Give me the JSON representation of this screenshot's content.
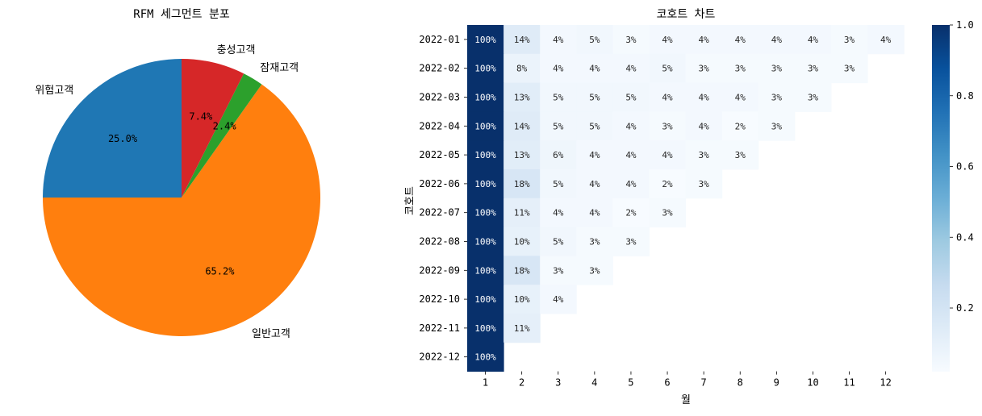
{
  "chart_data": [
    {
      "type": "pie",
      "title": "RFM 세그먼트 분포",
      "labels": [
        "위험고객",
        "일반고객",
        "잠재고객",
        "충성고객"
      ],
      "values": [
        25.0,
        65.2,
        2.4,
        7.4
      ],
      "pct_labels": [
        "25.0%",
        "65.2%",
        "2.4%",
        "7.4%"
      ],
      "colors": [
        "#1f77b4",
        "#ff7f0e",
        "#2ca02c",
        "#d62728"
      ],
      "start_angle_deg": 90,
      "direction": "counterclockwise"
    },
    {
      "type": "heatmap",
      "title": "코호트 차트",
      "xlabel": "월",
      "ylabel": "코호트",
      "x_ticks": [
        "1",
        "2",
        "3",
        "4",
        "5",
        "6",
        "7",
        "8",
        "9",
        "10",
        "11",
        "12"
      ],
      "y_ticks": [
        "2022-01",
        "2022-02",
        "2022-03",
        "2022-04",
        "2022-05",
        "2022-06",
        "2022-07",
        "2022-08",
        "2022-09",
        "2022-10",
        "2022-11",
        "2022-12"
      ],
      "values": [
        [
          100,
          14,
          4,
          5,
          3,
          4,
          4,
          4,
          4,
          4,
          3,
          4
        ],
        [
          100,
          8,
          4,
          4,
          4,
          5,
          3,
          3,
          3,
          3,
          3
        ],
        [
          100,
          13,
          5,
          5,
          5,
          4,
          4,
          4,
          3,
          3
        ],
        [
          100,
          14,
          5,
          5,
          4,
          3,
          4,
          2,
          3
        ],
        [
          100,
          13,
          6,
          4,
          4,
          4,
          3,
          3
        ],
        [
          100,
          18,
          5,
          4,
          4,
          2,
          3
        ],
        [
          100,
          11,
          4,
          4,
          2,
          3
        ],
        [
          100,
          10,
          5,
          3,
          3
        ],
        [
          100,
          18,
          3,
          3
        ],
        [
          100,
          10,
          4
        ],
        [
          100,
          11
        ],
        [
          100
        ]
      ],
      "value_suffix": "%",
      "colormap": "Blues",
      "colorbar_ticks": [
        "0.2",
        "0.4",
        "0.6",
        "0.8",
        "1.0"
      ],
      "colorbar_tick_values": [
        0.2,
        0.4,
        0.6,
        0.8,
        1.0
      ],
      "colorbar_range": [
        0.02,
        1.0
      ]
    }
  ]
}
